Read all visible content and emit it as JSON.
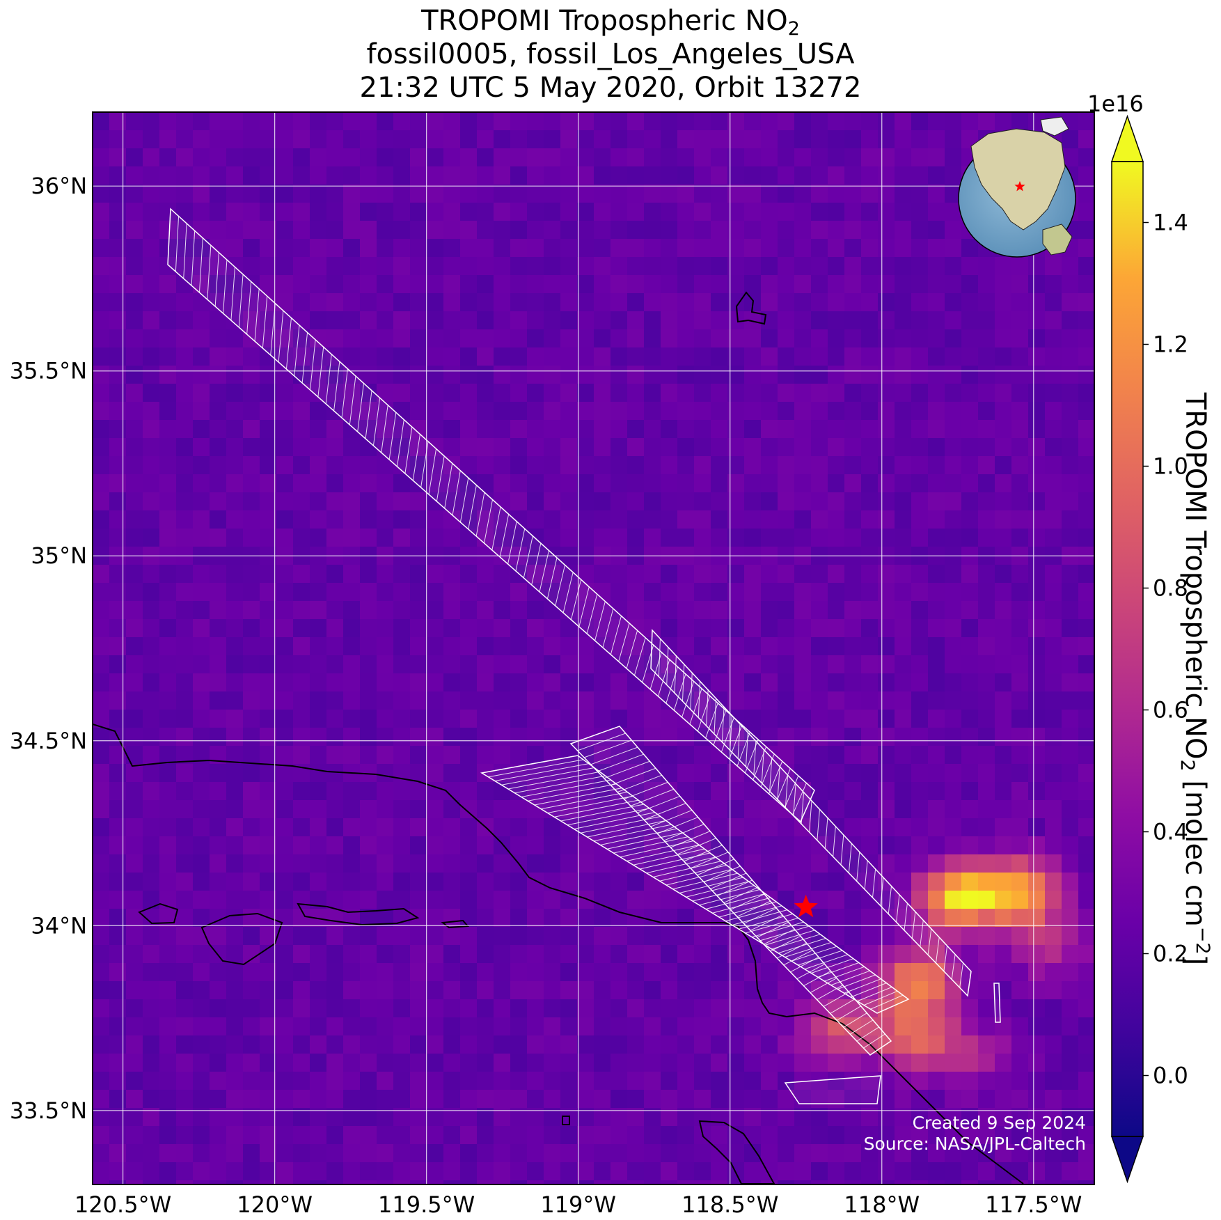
{
  "title": {
    "line1_prefix": "TROPOMI Tropospheric NO",
    "line1_subscript": "2",
    "line2": "fossil0005, fossil_Los_Angeles_USA",
    "line3": "21:32 UTC 5 May 2020, Orbit 13272"
  },
  "map": {
    "lon_range": [
      -120.6,
      -117.3
    ],
    "lat_range": [
      33.3,
      36.2
    ],
    "lon_ticks": [
      {
        "value": -120.5,
        "label": "120.5°W"
      },
      {
        "value": -120.0,
        "label": "120°W"
      },
      {
        "value": -119.5,
        "label": "119.5°W"
      },
      {
        "value": -119.0,
        "label": "119°W"
      },
      {
        "value": -118.5,
        "label": "118.5°W"
      },
      {
        "value": -118.0,
        "label": "118°W"
      },
      {
        "value": -117.5,
        "label": "117.5°W"
      }
    ],
    "lat_ticks": [
      {
        "value": 36.0,
        "label": "36°N"
      },
      {
        "value": 35.5,
        "label": "35.5°N"
      },
      {
        "value": 35.0,
        "label": "35°N"
      },
      {
        "value": 34.5,
        "label": "34.5°N"
      },
      {
        "value": 34.0,
        "label": "34°N"
      },
      {
        "value": 33.5,
        "label": "33.5°N"
      }
    ],
    "gridlines": true,
    "target_marker": {
      "lon": -118.25,
      "lat": 34.05,
      "symbol": "star",
      "color": "#ff0000"
    },
    "background_level": 0.22,
    "no2_hotspots_1e16": [
      {
        "lon": -117.75,
        "lat": 34.08,
        "value": 1.42
      },
      {
        "lon": -117.55,
        "lat": 34.09,
        "value": 1.25
      },
      {
        "lon": -117.88,
        "lat": 33.85,
        "value": 1.1
      },
      {
        "lon": -117.9,
        "lat": 33.7,
        "value": 0.95
      },
      {
        "lon": -118.15,
        "lat": 33.72,
        "value": 0.8
      },
      {
        "lon": -117.45,
        "lat": 33.95,
        "value": 0.6
      },
      {
        "lon": -117.7,
        "lat": 33.65,
        "value": 0.55
      }
    ],
    "inset_globe": {
      "marker": "star",
      "marker_color": "#ff0000"
    }
  },
  "colorbar": {
    "exponent_label": "1e16",
    "range": [
      -0.1,
      1.5
    ],
    "extend": "both",
    "colormap": "plasma",
    "ticks": [
      {
        "value": 0.0,
        "label": "0.0"
      },
      {
        "value": 0.2,
        "label": "0.2"
      },
      {
        "value": 0.4,
        "label": "0.4"
      },
      {
        "value": 0.6,
        "label": "0.6"
      },
      {
        "value": 0.8,
        "label": "0.8"
      },
      {
        "value": 1.0,
        "label": "1.0"
      },
      {
        "value": 1.2,
        "label": "1.2"
      },
      {
        "value": 1.4,
        "label": "1.4"
      }
    ],
    "label_prefix": "TROPOMI Tropospheric NO",
    "label_subscript": "2",
    "label_units_prefix": " [molec cm",
    "label_superscript": "−2",
    "label_suffix": "]"
  },
  "credits": {
    "created": "Created 9 Sep 2024",
    "source": "Source: NASA/JPL-Caltech"
  }
}
